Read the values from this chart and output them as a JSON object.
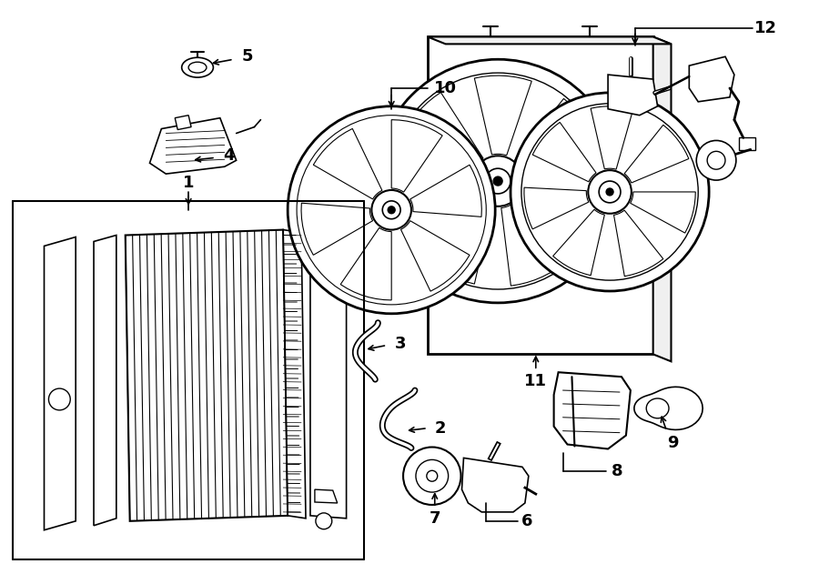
{
  "background_color": "#ffffff",
  "line_color": "#000000",
  "fig_width": 9.0,
  "fig_height": 6.42,
  "label_fontsize": 13
}
